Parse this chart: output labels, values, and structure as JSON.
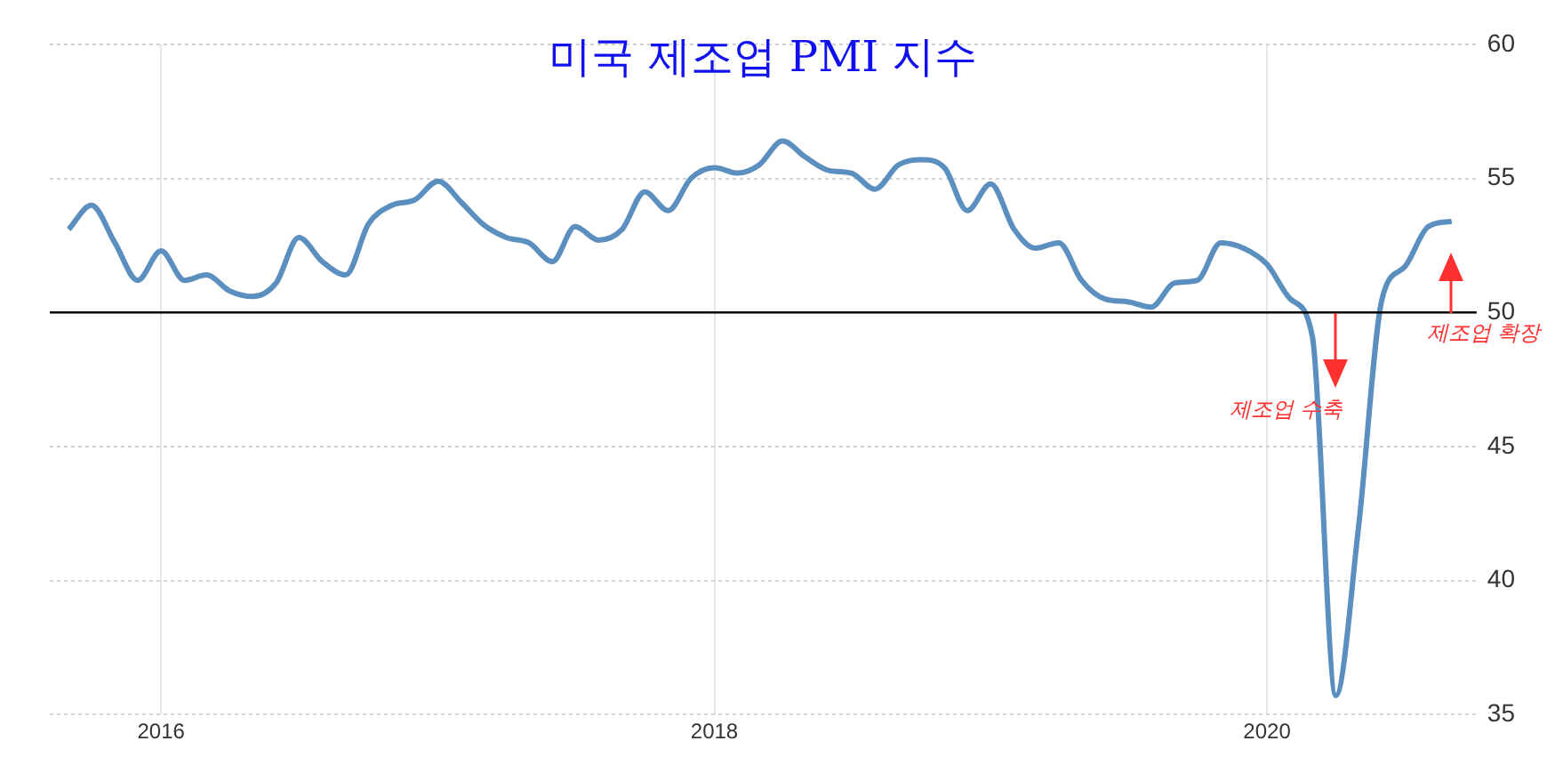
{
  "chart_data": {
    "type": "line",
    "title": "미국 제조업 PMI 지수",
    "x": [
      "2015-09",
      "2015-10",
      "2015-11",
      "2015-12",
      "2016-01",
      "2016-02",
      "2016-03",
      "2016-04",
      "2016-05",
      "2016-06",
      "2016-07",
      "2016-08",
      "2016-09",
      "2016-10",
      "2016-11",
      "2016-12",
      "2017-01",
      "2017-02",
      "2017-03",
      "2017-04",
      "2017-05",
      "2017-06",
      "2017-07",
      "2017-08",
      "2017-09",
      "2017-10",
      "2017-11",
      "2017-12",
      "2018-01",
      "2018-02",
      "2018-03",
      "2018-04",
      "2018-05",
      "2018-06",
      "2018-07",
      "2018-08",
      "2018-09",
      "2018-10",
      "2018-11",
      "2018-12",
      "2019-01",
      "2019-02",
      "2019-03",
      "2019-04",
      "2019-05",
      "2019-06",
      "2019-07",
      "2019-08",
      "2019-09",
      "2019-10",
      "2019-11",
      "2019-12",
      "2020-01",
      "2020-02",
      "2020-03",
      "2020-04",
      "2020-05",
      "2020-06",
      "2020-07",
      "2020-08",
      "2020-09"
    ],
    "series": [
      {
        "color": "#5b8fbf",
        "values": [
          53.1,
          54.0,
          52.6,
          51.2,
          52.3,
          51.2,
          51.4,
          50.8,
          50.6,
          51.1,
          52.8,
          51.9,
          51.4,
          53.3,
          54.0,
          54.2,
          54.9,
          54.1,
          53.3,
          52.8,
          52.6,
          51.9,
          53.2,
          52.7,
          53.1,
          54.5,
          53.8,
          55.0,
          55.4,
          55.2,
          55.5,
          56.4,
          55.8,
          55.3,
          55.2,
          54.6,
          55.5,
          55.7,
          55.4,
          53.8,
          54.8,
          53.1,
          52.4,
          52.6,
          51.2,
          50.5,
          50.4,
          50.2,
          51.1,
          51.2,
          52.6,
          52.4,
          51.8,
          50.5,
          49.1,
          35.7,
          42.0,
          50.5,
          51.7,
          53.2,
          53.4
        ]
      }
    ],
    "xlim": [
      "2015-08-07",
      "2020-10-04"
    ],
    "xticks": [
      "2016",
      "2018",
      "2020"
    ],
    "ylim": [
      35,
      60
    ],
    "yticks": [
      35,
      40,
      45,
      50,
      55,
      60
    ],
    "grid": true,
    "legend": false,
    "marker": "none",
    "line_style": "solid",
    "ref_lines": [
      {
        "axis": "y",
        "value": 50,
        "color": "#000000"
      }
    ],
    "annotations": [
      "제조업 수축",
      "제조업 확장"
    ]
  }
}
